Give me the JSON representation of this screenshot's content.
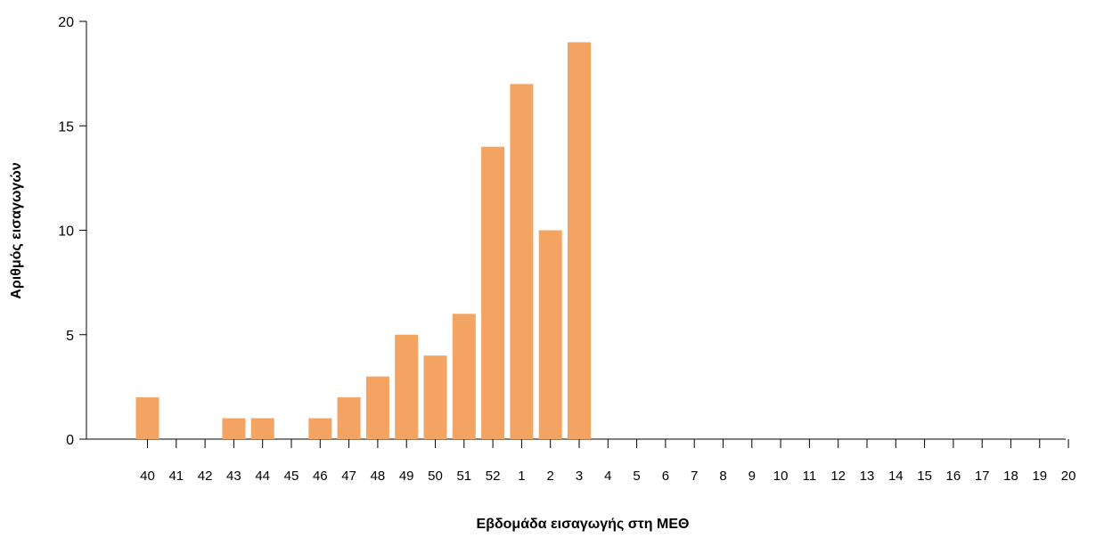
{
  "colors": {
    "bar": "#f4a462",
    "axis": "#000000",
    "background": "#ffffff"
  },
  "chart_data": {
    "type": "bar",
    "title": "",
    "xlabel": "Εβδομάδα εισαγωγής στη ΜΕΘ",
    "ylabel": "Αριθμός εισαγωγών",
    "ylim": [
      0,
      20
    ],
    "yticks": [
      0,
      5,
      10,
      15,
      20
    ],
    "grid": false,
    "legend": "none",
    "categories": [
      "40",
      "41",
      "42",
      "43",
      "44",
      "45",
      "46",
      "47",
      "48",
      "49",
      "50",
      "51",
      "52",
      "1",
      "2",
      "3",
      "4",
      "5",
      "6",
      "7",
      "8",
      "9",
      "10",
      "11",
      "12",
      "13",
      "14",
      "15",
      "16",
      "17",
      "18",
      "19",
      "20"
    ],
    "values": [
      2,
      0,
      0,
      1,
      1,
      0,
      1,
      2,
      3,
      5,
      4,
      6,
      14,
      17,
      10,
      19,
      0,
      0,
      0,
      0,
      0,
      0,
      0,
      0,
      0,
      0,
      0,
      0,
      0,
      0,
      0,
      0,
      0
    ]
  }
}
